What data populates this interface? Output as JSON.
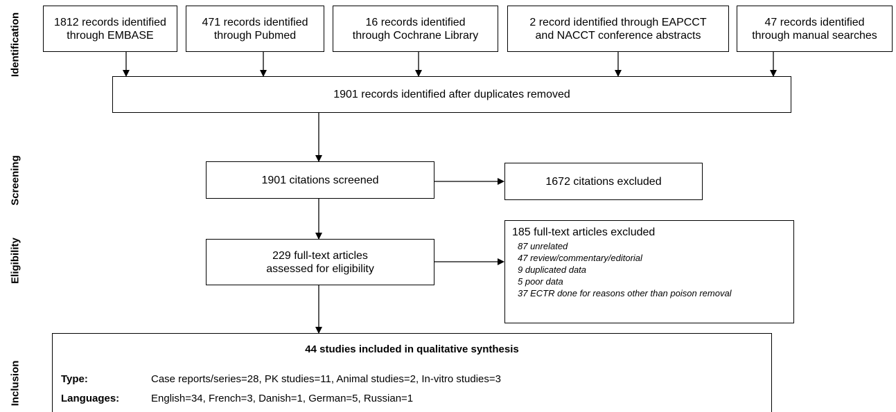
{
  "stages": [
    "Identification",
    "Screening",
    "Eligibility",
    "Inclusion"
  ],
  "sources": [
    [
      "1812 records identified",
      "through EMBASE"
    ],
    [
      "471 records identified",
      "through Pubmed"
    ],
    [
      "16 records identified",
      "through Cochrane Library"
    ],
    [
      "2 record identified through EAPCCT",
      "and NACCT conference abstracts"
    ],
    [
      "47 records identified",
      "through manual searches"
    ]
  ],
  "deduplicated": "1901 records identified after duplicates removed",
  "screened": "1901 citations screened",
  "screened_excluded": "1672 citations excluded",
  "fulltext": [
    "229 full-text articles",
    "assessed for eligibility"
  ],
  "fulltext_excluded": {
    "title": "185 full-text articles excluded",
    "reasons": [
      "87 unrelated",
      "47 review/commentary/editorial",
      "9 duplicated data",
      "5 poor data",
      "37 ECTR done for reasons other than poison removal"
    ]
  },
  "included": {
    "title": "44 studies included in qualitative synthesis",
    "rows": [
      {
        "label": "Type:",
        "text": "Case reports/series=28, PK studies=11, Animal studies=2, In-vitro studies=3"
      },
      {
        "label": "Languages:",
        "text": "English=34, French=3, Danish=1, German=5, Russian=1"
      }
    ]
  }
}
